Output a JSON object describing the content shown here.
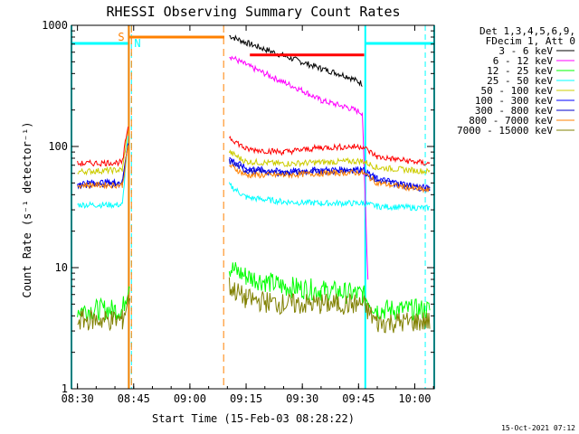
{
  "chart_data": {
    "type": "line",
    "title": "RHESSI Observing Summary Count Rates",
    "xlabel": "Start Time (15-Feb-03 08:28:22)",
    "ylabel": "Count Rate (s⁻¹ detector⁻¹)",
    "yscale": "log",
    "ylim": [
      1,
      1000
    ],
    "xlim_minutes": [
      -1.6,
      95.2
    ],
    "x_ticks": [
      {
        "label": "08:30",
        "minutes": 0
      },
      {
        "label": "08:45",
        "minutes": 15
      },
      {
        "label": "09:00",
        "minutes": 30
      },
      {
        "label": "09:15",
        "minutes": 45
      },
      {
        "label": "09:30",
        "minutes": 60
      },
      {
        "label": "09:45",
        "minutes": 75
      },
      {
        "label": "10:00",
        "minutes": 90
      }
    ],
    "y_ticks": [
      {
        "label": "1",
        "value": 1
      },
      {
        "label": "10",
        "value": 10
      },
      {
        "label": "100",
        "value": 100
      },
      {
        "label": "1000",
        "value": 1000
      }
    ],
    "legend": {
      "position": "right",
      "header": [
        "Det 1,3,4,5,6,9,",
        "FDecim 1, Att 0"
      ]
    },
    "annotations": {
      "saa_label": "S",
      "night_label": "N",
      "saa_color": "#ff8000",
      "night_color": "#00ffff",
      "saa_minutes": [
        13.7,
        39.2
      ],
      "night_minutes": [
        -1.6,
        13.7,
        76.8,
        95.2
      ],
      "night_dashed_minutes": [
        14.4,
        92.8
      ],
      "saa_dashed_minutes": [
        14.4,
        39.0
      ],
      "flare_bar": {
        "color": "#ff0000",
        "minutes": [
          46.0,
          76.5
        ],
        "value": 570
      }
    },
    "series": [
      {
        "name": "3 - 6 keV",
        "color": "#000000",
        "values": [
          [
            40.5,
            820
          ],
          [
            45,
            720
          ],
          [
            55,
            560
          ],
          [
            65,
            440
          ],
          [
            72,
            380
          ],
          [
            76,
            330
          ]
        ]
      },
      {
        "name": "6 - 12 keV",
        "color": "#ff00ff",
        "values": [
          [
            40.5,
            560
          ],
          [
            45,
            470
          ],
          [
            55,
            340
          ],
          [
            60,
            290
          ],
          [
            65,
            240
          ],
          [
            72,
            210
          ],
          [
            76,
            190
          ],
          [
            77.5,
            8
          ]
        ]
      },
      {
        "name": "12 - 25 keV",
        "color": "#00ff00",
        "values": [
          [
            0,
            4.5
          ],
          [
            12,
            4.5
          ],
          [
            14,
            8
          ],
          [
            40.5,
            10
          ],
          [
            45,
            8.5
          ],
          [
            55,
            7
          ],
          [
            65,
            6.5
          ],
          [
            76,
            6
          ],
          [
            80,
            4.5
          ],
          [
            94,
            4.5
          ]
        ]
      },
      {
        "name": "25 - 50 keV",
        "color": "#00ffff",
        "values": [
          [
            0,
            33
          ],
          [
            12,
            33
          ],
          [
            13.5,
            120
          ],
          [
            40.5,
            48
          ],
          [
            45,
            38
          ],
          [
            55,
            35
          ],
          [
            65,
            34
          ],
          [
            76,
            34
          ],
          [
            80,
            32
          ],
          [
            94,
            31
          ]
        ]
      },
      {
        "name": "50 - 100 keV",
        "color": "#cccc00",
        "values": [
          [
            0,
            62
          ],
          [
            12,
            64
          ],
          [
            13.5,
            140
          ],
          [
            40.5,
            90
          ],
          [
            45,
            75
          ],
          [
            55,
            72
          ],
          [
            65,
            74
          ],
          [
            76,
            76
          ],
          [
            80,
            67
          ],
          [
            94,
            62
          ]
        ]
      },
      {
        "name": "100 - 300 keV",
        "color": "#0000ff",
        "values": [
          [
            0,
            50
          ],
          [
            12,
            51
          ],
          [
            13.5,
            110
          ],
          [
            40.5,
            80
          ],
          [
            45,
            66
          ],
          [
            55,
            62
          ],
          [
            65,
            64
          ],
          [
            76,
            65
          ],
          [
            80,
            54
          ],
          [
            94,
            45
          ]
        ]
      },
      {
        "name": "300 - 800 keV",
        "color": "#0000cc",
        "values": [
          [
            0,
            48
          ],
          [
            12,
            49
          ],
          [
            13.5,
            105
          ],
          [
            40.5,
            75
          ],
          [
            45,
            63
          ],
          [
            55,
            60
          ],
          [
            65,
            62
          ],
          [
            76,
            63
          ],
          [
            80,
            52
          ],
          [
            94,
            44
          ]
        ]
      },
      {
        "name": "800 - 7000 keV",
        "color": "#ff8000",
        "values": [
          [
            0,
            48
          ],
          [
            12,
            48
          ],
          [
            13.5,
            100
          ],
          [
            40.5,
            70
          ],
          [
            45,
            58
          ],
          [
            55,
            58
          ],
          [
            65,
            60
          ],
          [
            76,
            61
          ],
          [
            80,
            50
          ],
          [
            94,
            43
          ]
        ]
      },
      {
        "name": "7000 - 15000 keV",
        "color": "#808000",
        "values": [
          [
            0,
            3.7
          ],
          [
            12,
            3.7
          ],
          [
            14,
            6
          ],
          [
            40.5,
            7
          ],
          [
            45,
            5.5
          ],
          [
            55,
            5
          ],
          [
            65,
            5
          ],
          [
            76,
            5
          ],
          [
            80,
            3.5
          ],
          [
            94,
            3.6
          ]
        ]
      },
      {
        "name": "",
        "color": "#ff0000",
        "values": [
          [
            0,
            72
          ],
          [
            12,
            74
          ],
          [
            13.5,
            150
          ],
          [
            40.5,
            120
          ],
          [
            45,
            95
          ],
          [
            55,
            90
          ],
          [
            65,
            98
          ],
          [
            76,
            100
          ],
          [
            80,
            82
          ],
          [
            94,
            72
          ]
        ]
      }
    ]
  },
  "footer": {
    "timestamp": "15-Oct-2021 07:12"
  }
}
